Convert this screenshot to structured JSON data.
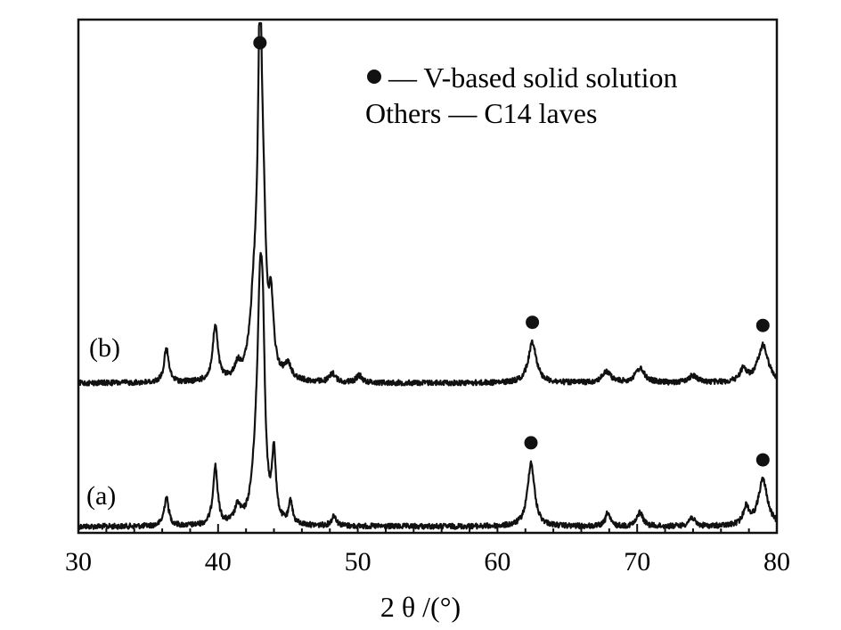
{
  "chart_data": {
    "type": "line",
    "title": "",
    "xlabel": "2 θ /(°)",
    "ylabel": "",
    "xlim": [
      30,
      80
    ],
    "x_ticks": [
      "30",
      "40",
      "50",
      "60",
      "70",
      "80"
    ],
    "y_ticks_shown": false,
    "grid": false,
    "legend": {
      "placement": "top-right",
      "entries": [
        {
          "marker": "filled-circle",
          "text": "— V-based solid solution"
        },
        {
          "marker": "",
          "text": "Others — C14 laves"
        }
      ]
    },
    "series": [
      {
        "name": "(a)",
        "baseline": 0,
        "peaks": [
          {
            "x": 36.3,
            "height": 32,
            "width": 0.2
          },
          {
            "x": 39.8,
            "height": 66,
            "width": 0.2
          },
          {
            "x": 41.4,
            "height": 18,
            "width": 0.25
          },
          {
            "x": 42.7,
            "height": 50,
            "width": 0.35
          },
          {
            "x": 43.0,
            "height": 200,
            "width": 0.22
          },
          {
            "x": 43.2,
            "height": 150,
            "width": 0.18
          },
          {
            "x": 44.0,
            "height": 76,
            "width": 0.16
          },
          {
            "x": 45.2,
            "height": 26,
            "width": 0.15
          },
          {
            "x": 48.3,
            "height": 12,
            "width": 0.2
          },
          {
            "x": 62.4,
            "height": 72,
            "width": 0.3
          },
          {
            "x": 67.9,
            "height": 16,
            "width": 0.18
          },
          {
            "x": 70.2,
            "height": 16,
            "width": 0.25
          },
          {
            "x": 73.9,
            "height": 10,
            "width": 0.25
          },
          {
            "x": 77.8,
            "height": 20,
            "width": 0.25
          },
          {
            "x": 79.0,
            "height": 52,
            "width": 0.4
          }
        ],
        "phase_markers_x": [
          62.4,
          79.0
        ]
      },
      {
        "name": "(b)",
        "baseline": 0,
        "peaks": [
          {
            "x": 36.3,
            "height": 38,
            "width": 0.2
          },
          {
            "x": 39.8,
            "height": 62,
            "width": 0.22
          },
          {
            "x": 41.4,
            "height": 14,
            "width": 0.25
          },
          {
            "x": 42.6,
            "height": 80,
            "width": 0.35
          },
          {
            "x": 43.0,
            "height": 360,
            "width": 0.18
          },
          {
            "x": 43.25,
            "height": 120,
            "width": 0.22
          },
          {
            "x": 43.8,
            "height": 74,
            "width": 0.2
          },
          {
            "x": 45.0,
            "height": 16,
            "width": 0.3
          },
          {
            "x": 48.2,
            "height": 10,
            "width": 0.25
          },
          {
            "x": 50.1,
            "height": 8,
            "width": 0.25
          },
          {
            "x": 62.5,
            "height": 46,
            "width": 0.35
          },
          {
            "x": 67.8,
            "height": 12,
            "width": 0.4
          },
          {
            "x": 70.2,
            "height": 16,
            "width": 0.4
          },
          {
            "x": 74.0,
            "height": 8,
            "width": 0.4
          },
          {
            "x": 77.6,
            "height": 14,
            "width": 0.3
          },
          {
            "x": 79.0,
            "height": 42,
            "width": 0.45
          }
        ],
        "phase_markers_x": [
          43.0,
          62.5,
          79.0
        ]
      }
    ]
  }
}
